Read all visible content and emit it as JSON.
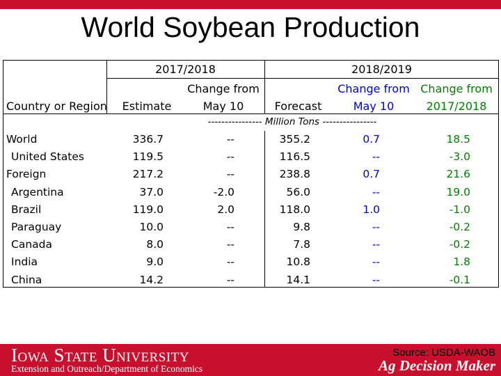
{
  "slide": {
    "title": "World Soybean Production",
    "accent_color": "#c8102e"
  },
  "table": {
    "period_headers": [
      "2017/2018",
      "2018/2019"
    ],
    "column_headers": {
      "country": "Country or Region",
      "estimate": "Estimate",
      "change_may10_line1": "Change from",
      "change_may10_line2": "May 10",
      "forecast": "Forecast",
      "change_may10_b_line1": "Change from",
      "change_may10_b_line2": "May 10",
      "change_prev_line1": "Change from",
      "change_prev_line2": "2017/2018"
    },
    "units": "---------------- Million Tons ----------------",
    "colors": {
      "blue": "#0000cc",
      "green": "#008000"
    },
    "rows": [
      {
        "region": "World",
        "estimate": "336.7",
        "change1": "--",
        "forecast": "355.2",
        "change2": "0.7",
        "change3": "18.5"
      },
      {
        "region": "United States",
        "estimate": "119.5",
        "change1": "--",
        "forecast": "116.5",
        "change2": "--",
        "change3": "-3.0"
      },
      {
        "region": "Foreign",
        "estimate": "217.2",
        "change1": "--",
        "forecast": "238.8",
        "change2": "0.7",
        "change3": "21.6"
      },
      {
        "region": "Argentina",
        "estimate": "37.0",
        "change1": "-2.0",
        "forecast": "56.0",
        "change2": "--",
        "change3": "19.0"
      },
      {
        "region": "Brazil",
        "estimate": "119.0",
        "change1": "2.0",
        "forecast": "118.0",
        "change2": "1.0",
        "change3": "-1.0"
      },
      {
        "region": "Paraguay",
        "estimate": "10.0",
        "change1": "--",
        "forecast": "9.8",
        "change2": "--",
        "change3": "-0.2"
      },
      {
        "region": "Canada",
        "estimate": "8.0",
        "change1": "--",
        "forecast": "7.8",
        "change2": "--",
        "change3": "-0.2"
      },
      {
        "region": "India",
        "estimate": "9.0",
        "change1": "--",
        "forecast": "10.8",
        "change2": "--",
        "change3": "1.8"
      },
      {
        "region": "China",
        "estimate": "14.2",
        "change1": "--",
        "forecast": "14.1",
        "change2": "--",
        "change3": "-0.1"
      }
    ]
  },
  "footer": {
    "university": "Iowa State University",
    "department": "Extension and Outreach/Department of Economics",
    "source": "Source: USDA-WAOB",
    "program": "Ag Decision Maker"
  }
}
